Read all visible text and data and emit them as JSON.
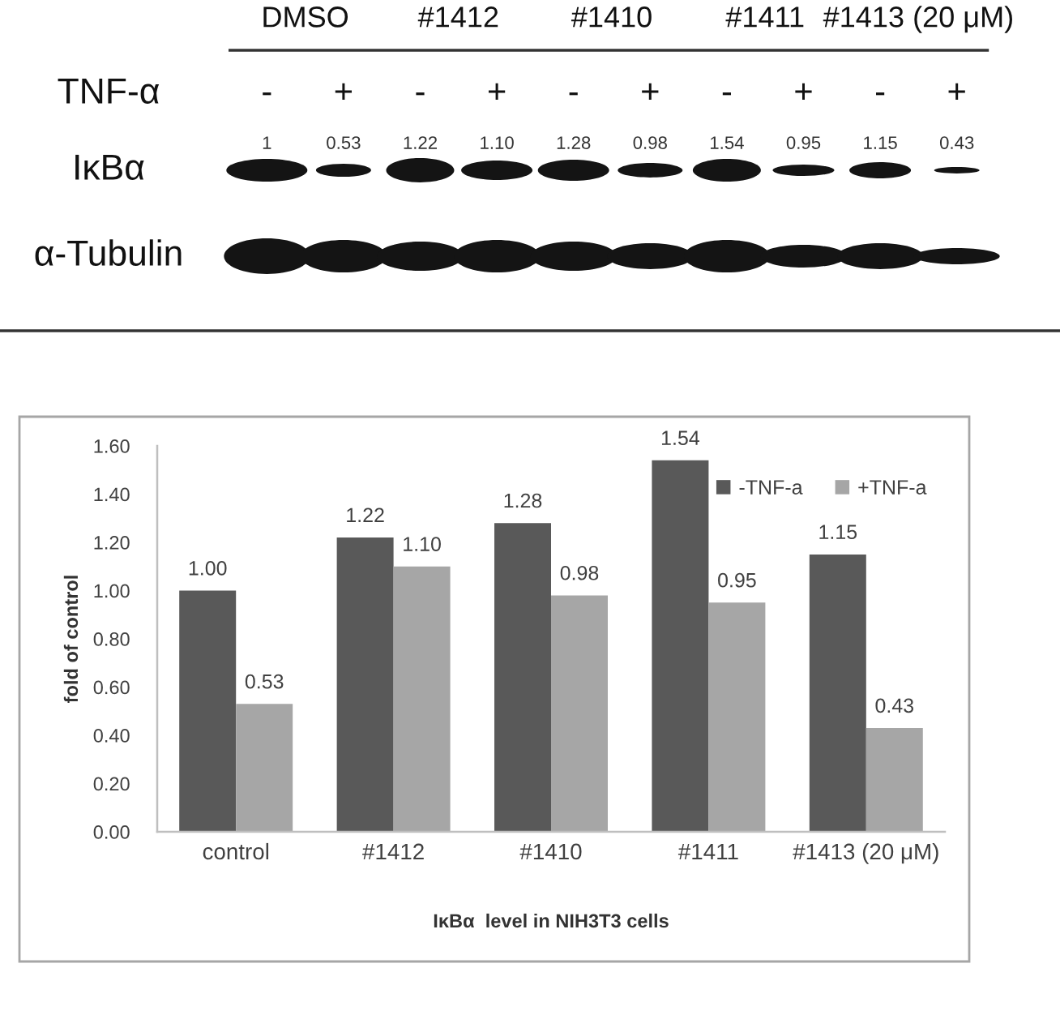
{
  "chart_data": [
    {
      "type": "other",
      "categories": [
        "DMSO",
        "#1412",
        "#1410",
        "#1411",
        "#1413 (20 μM)"
      ],
      "series": [
        {
          "name": "-",
          "values": [
            1,
            1.22,
            1.28,
            1.54,
            1.15
          ],
          "value_labels": [
            "1",
            "1.22",
            "1.28",
            "1.54",
            "1.15"
          ]
        },
        {
          "name": "+",
          "values": [
            0.53,
            1.1,
            0.98,
            0.95,
            0.43
          ],
          "value_labels": [
            "0.53",
            "1.10",
            "0.98",
            "0.95",
            "0.43"
          ]
        }
      ],
      "annotations": [
        "TNF-α",
        "IκBα",
        "α-Tubulin"
      ]
    },
    {
      "type": "bar",
      "categories": [
        "control",
        "#1412",
        "#1410",
        "#1411",
        "#1413 (20 μM)"
      ],
      "series": [
        {
          "name": "-TNF-a",
          "color": "#595959",
          "values": [
            1.0,
            1.22,
            1.28,
            1.54,
            1.15
          ],
          "value_labels": [
            "1.00",
            "1.22",
            "1.28",
            "1.54",
            "1.15"
          ]
        },
        {
          "name": "+TNF-a",
          "color": "#a6a6a6",
          "values": [
            0.53,
            1.1,
            0.98,
            0.95,
            0.43
          ],
          "value_labels": [
            "0.53",
            "1.10",
            "0.98",
            "0.95",
            "0.43"
          ]
        }
      ],
      "xlabel": "IκBα  level in NIH3T3 cells",
      "ylabel": "fold of control",
      "ylim": [
        0,
        1.6
      ],
      "yticks": [
        {
          "value": 0,
          "label": "0.00"
        },
        {
          "value": 0.2,
          "label": "0.20"
        },
        {
          "value": 0.4,
          "label": "0.40"
        },
        {
          "value": 0.6,
          "label": "0.60"
        },
        {
          "value": 0.8,
          "label": "0.80"
        },
        {
          "value": 1.0,
          "label": "1.00"
        },
        {
          "value": 1.2,
          "label": "1.20"
        },
        {
          "value": 1.4,
          "label": "1.40"
        },
        {
          "value": 1.6,
          "label": "1.60"
        }
      ],
      "legend": "top right"
    }
  ]
}
